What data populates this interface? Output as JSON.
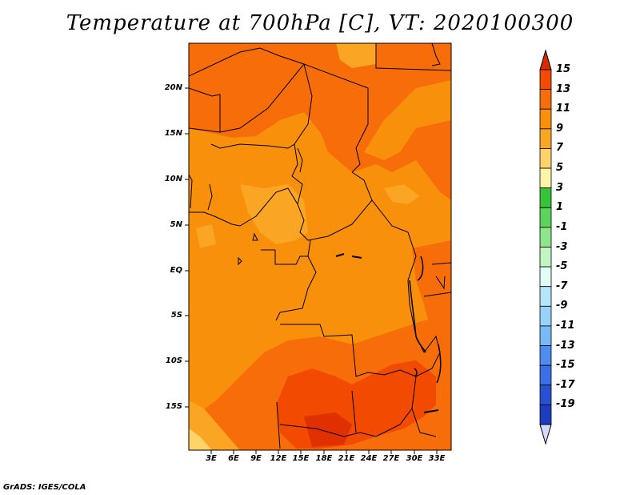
{
  "title": "Temperature at 700hPa [C], VT: 2020100300",
  "credit": "GrADS: IGES/COLA",
  "map": {
    "lat_labels": [
      "20N",
      "15N",
      "10N",
      "5N",
      "EQ",
      "5S",
      "10S",
      "15S"
    ],
    "lon_labels": [
      "3E",
      "6E",
      "9E",
      "12E",
      "15E",
      "18E",
      "21E",
      "24E",
      "27E",
      "30E",
      "33E"
    ]
  },
  "colorbar": {
    "labels": [
      "15",
      "13",
      "11",
      "9",
      "7",
      "5",
      "3",
      "1",
      "-1",
      "-3",
      "-5",
      "-7",
      "-9",
      "-11",
      "-13",
      "-15",
      "-17",
      "-19"
    ],
    "colors": [
      "#e03000",
      "#f24a00",
      "#f76d0a",
      "#f9900b",
      "#faa523",
      "#fdd36a",
      "#fff5a8",
      "#37c436",
      "#5ad45a",
      "#8ee58e",
      "#c2f5c2",
      "#e2fff5",
      "#b4e6fa",
      "#96d2fa",
      "#78b9fa",
      "#508cf0",
      "#3c6ee6",
      "#2850d2",
      "#1e3cbe",
      "#0a1f7a"
    ],
    "end_top_color": "#d62a00",
    "end_bottom_color": "#d5daf8"
  }
}
